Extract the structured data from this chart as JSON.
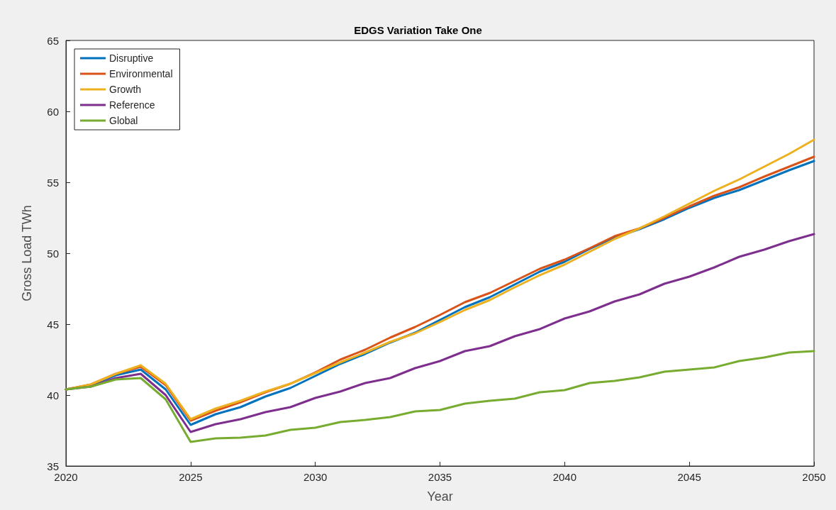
{
  "chart_data": {
    "type": "line",
    "title": "EDGS Variation Take One",
    "xlabel": "Year",
    "ylabel": "Gross Load TWh",
    "x": [
      2020,
      2021,
      2022,
      2023,
      2024,
      2025,
      2026,
      2027,
      2028,
      2029,
      2030,
      2031,
      2032,
      2033,
      2034,
      2035,
      2036,
      2037,
      2038,
      2039,
      2040,
      2041,
      2042,
      2043,
      2044,
      2045,
      2046,
      2047,
      2048,
      2049,
      2050
    ],
    "series": [
      {
        "name": "Disruptive",
        "color": "#0072bd",
        "values": [
          40.4,
          40.7,
          41.4,
          41.8,
          40.4,
          37.9,
          38.65,
          39.15,
          39.9,
          40.5,
          41.35,
          42.2,
          42.9,
          43.7,
          44.4,
          45.3,
          46.2,
          46.9,
          47.8,
          48.7,
          49.4,
          50.3,
          51.1,
          51.7,
          52.4,
          53.2,
          53.9,
          54.45,
          55.15,
          55.85,
          56.5
        ]
      },
      {
        "name": "Environmental",
        "color": "#d95319",
        "values": [
          40.4,
          40.75,
          41.5,
          42.0,
          40.7,
          38.2,
          38.9,
          39.5,
          40.2,
          40.8,
          41.6,
          42.5,
          43.2,
          44.05,
          44.8,
          45.65,
          46.55,
          47.2,
          48.05,
          48.9,
          49.55,
          50.35,
          51.2,
          51.75,
          52.5,
          53.3,
          54.05,
          54.65,
          55.4,
          56.1,
          56.8
        ]
      },
      {
        "name": "Growth",
        "color": "#edb120",
        "values": [
          40.4,
          40.75,
          41.5,
          42.1,
          40.8,
          38.3,
          39.05,
          39.6,
          40.25,
          40.8,
          41.55,
          42.3,
          43.0,
          43.75,
          44.35,
          45.15,
          46.0,
          46.7,
          47.6,
          48.45,
          49.2,
          50.1,
          51.0,
          51.75,
          52.6,
          53.5,
          54.4,
          55.2,
          56.1,
          57.0,
          58.0
        ]
      },
      {
        "name": "Reference",
        "color": "#7e2f8e",
        "values": [
          40.4,
          40.6,
          41.2,
          41.5,
          40.0,
          37.4,
          37.95,
          38.3,
          38.8,
          39.15,
          39.8,
          40.25,
          40.85,
          41.2,
          41.9,
          42.4,
          43.1,
          43.45,
          44.15,
          44.65,
          45.4,
          45.9,
          46.6,
          47.1,
          47.85,
          48.35,
          49.0,
          49.75,
          50.25,
          50.85,
          51.35
        ]
      },
      {
        "name": "Global",
        "color": "#77ac30",
        "values": [
          40.4,
          40.6,
          41.1,
          41.2,
          39.7,
          36.7,
          36.95,
          37.0,
          37.15,
          37.55,
          37.7,
          38.1,
          38.25,
          38.45,
          38.85,
          38.95,
          39.4,
          39.6,
          39.75,
          40.2,
          40.35,
          40.85,
          41.0,
          41.25,
          41.65,
          41.8,
          41.95,
          42.4,
          42.65,
          43.0,
          43.1
        ]
      }
    ],
    "xlim": [
      2020,
      2050
    ],
    "xticks": [
      2020,
      2025,
      2030,
      2035,
      2040,
      2045,
      2050
    ],
    "ylim": [
      35,
      65
    ],
    "yticks": [
      35,
      40,
      45,
      50,
      55,
      60,
      65
    ],
    "grid": false,
    "legend": "top left",
    "marker": "none",
    "line_style": "solid"
  }
}
